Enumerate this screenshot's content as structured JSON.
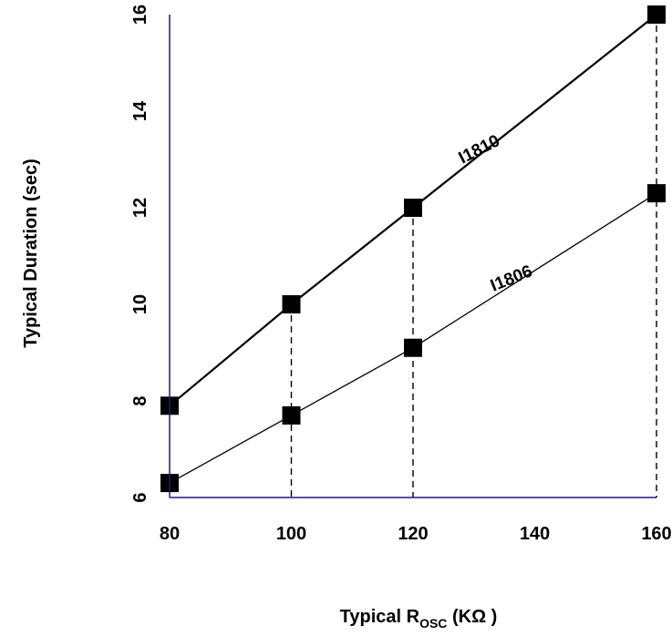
{
  "chart_data": {
    "type": "line",
    "xlabel": {
      "prefix": "Typical R",
      "sub": "OSC",
      "suffix": " (KΩ )"
    },
    "ylabel": "Typical Duration (sec)",
    "xlim": [
      80,
      160
    ],
    "ylim": [
      6,
      16
    ],
    "xticks": [
      "80",
      "100",
      "120",
      "140",
      "160"
    ],
    "yticks": [
      "6",
      "8",
      "10",
      "12",
      "14",
      "16"
    ],
    "grid": false,
    "series": [
      {
        "name": "I1810",
        "x": [
          80,
          100,
          120,
          160
        ],
        "y": [
          7.9,
          10.0,
          12.0,
          16.0
        ]
      },
      {
        "name": "I1806",
        "x": [
          80,
          100,
          120,
          160
        ],
        "y": [
          6.3,
          7.7,
          9.1,
          12.3
        ]
      }
    ],
    "dropline_x": [
      100,
      120,
      160
    ]
  }
}
